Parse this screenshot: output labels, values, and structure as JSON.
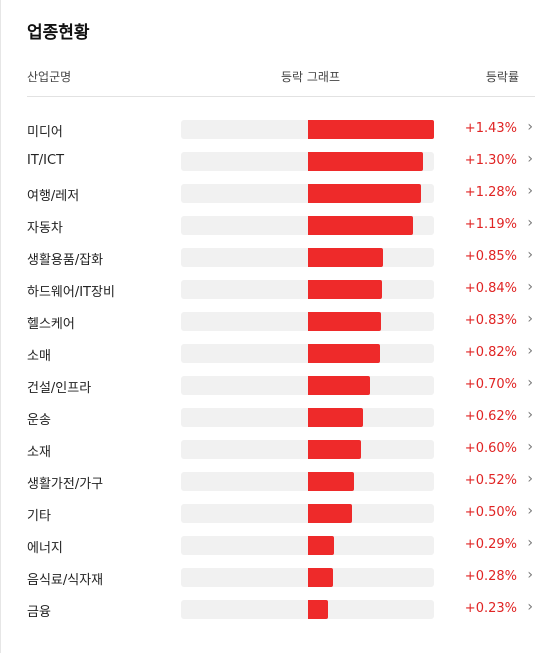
{
  "title": "업종현황",
  "header": {
    "name": "산업군명",
    "graph": "등락 그래프",
    "rate": "등락률"
  },
  "colors": {
    "bar": "#ee2a2a",
    "track": "#f1f1f1",
    "up": "#e02424"
  },
  "icons": {
    "row_arrow": "chevron-right-icon"
  },
  "chart_data": {
    "type": "bar",
    "categories": [
      "미디어",
      "IT/ICT",
      "여행/레저",
      "자동차",
      "생활용품/잡화",
      "하드웨어/IT장비",
      "헬스케어",
      "소매",
      "건설/인프라",
      "운송",
      "소재",
      "생활가전/가구",
      "기타",
      "에너지",
      "음식료/식자재",
      "금융"
    ],
    "values": [
      1.43,
      1.3,
      1.28,
      1.19,
      0.85,
      0.84,
      0.83,
      0.82,
      0.7,
      0.62,
      0.6,
      0.52,
      0.5,
      0.29,
      0.28,
      0.23
    ]
  },
  "rows": [
    {
      "name": "미디어",
      "rate": "+1.43%",
      "value": 1.43
    },
    {
      "name": "IT/ICT",
      "rate": "+1.30%",
      "value": 1.3
    },
    {
      "name": "여행/레저",
      "rate": "+1.28%",
      "value": 1.28
    },
    {
      "name": "자동차",
      "rate": "+1.19%",
      "value": 1.19
    },
    {
      "name": "생활용품/잡화",
      "rate": "+0.85%",
      "value": 0.85
    },
    {
      "name": "하드웨어/IT장비",
      "rate": "+0.84%",
      "value": 0.84
    },
    {
      "name": "헬스케어",
      "rate": "+0.83%",
      "value": 0.83
    },
    {
      "name": "소매",
      "rate": "+0.82%",
      "value": 0.82
    },
    {
      "name": "건설/인프라",
      "rate": "+0.70%",
      "value": 0.7
    },
    {
      "name": "운송",
      "rate": "+0.62%",
      "value": 0.62
    },
    {
      "name": "소재",
      "rate": "+0.60%",
      "value": 0.6
    },
    {
      "name": "생활가전/가구",
      "rate": "+0.52%",
      "value": 0.52
    },
    {
      "name": "기타",
      "rate": "+0.50%",
      "value": 0.5
    },
    {
      "name": "에너지",
      "rate": "+0.29%",
      "value": 0.29
    },
    {
      "name": "음식료/식자재",
      "rate": "+0.28%",
      "value": 0.28
    },
    {
      "name": "금융",
      "rate": "+0.23%",
      "value": 0.23
    }
  ]
}
